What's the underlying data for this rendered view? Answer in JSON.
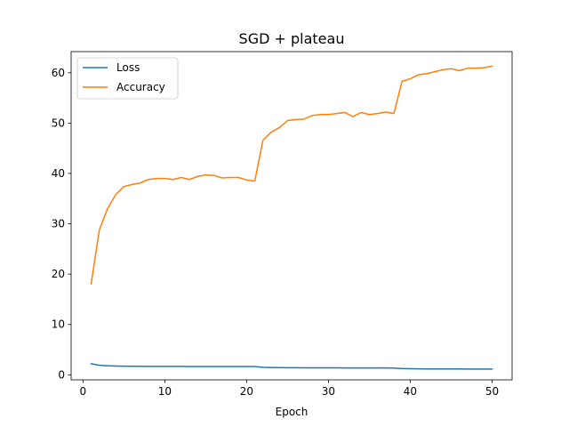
{
  "chart_data": {
    "type": "line",
    "title": "SGD + plateau",
    "xlabel": "Epoch",
    "ylabel": "",
    "xlim": [
      -1.45,
      52.45
    ],
    "ylim": [
      -1.0,
      64.2
    ],
    "xticks": [
      0,
      10,
      20,
      30,
      40,
      50
    ],
    "yticks": [
      0,
      10,
      20,
      30,
      40,
      50,
      60
    ],
    "grid": false,
    "legend_position": "top-left",
    "x": [
      1,
      2,
      3,
      4,
      5,
      6,
      7,
      8,
      9,
      10,
      11,
      12,
      13,
      14,
      15,
      16,
      17,
      18,
      19,
      20,
      21,
      22,
      23,
      24,
      25,
      26,
      27,
      28,
      29,
      30,
      31,
      32,
      33,
      34,
      35,
      36,
      37,
      38,
      39,
      40,
      41,
      42,
      43,
      44,
      45,
      46,
      47,
      48,
      49,
      50
    ],
    "series": [
      {
        "name": "Loss",
        "color": "#1f77b4",
        "values": [
          2.2,
          1.9,
          1.8,
          1.75,
          1.72,
          1.7,
          1.69,
          1.68,
          1.68,
          1.67,
          1.67,
          1.67,
          1.66,
          1.66,
          1.66,
          1.65,
          1.65,
          1.65,
          1.65,
          1.65,
          1.64,
          1.5,
          1.45,
          1.42,
          1.41,
          1.4,
          1.39,
          1.39,
          1.38,
          1.38,
          1.38,
          1.37,
          1.37,
          1.37,
          1.36,
          1.36,
          1.36,
          1.35,
          1.25,
          1.2,
          1.18,
          1.17,
          1.17,
          1.16,
          1.16,
          1.16,
          1.15,
          1.15,
          1.15,
          1.15
        ]
      },
      {
        "name": "Accuracy",
        "color": "#ff7f0e",
        "values": [
          18.1,
          28.8,
          33.0,
          35.8,
          37.4,
          37.8,
          38.1,
          38.8,
          39.0,
          39.0,
          38.8,
          39.2,
          38.8,
          39.4,
          39.7,
          39.6,
          39.1,
          39.2,
          39.2,
          38.7,
          38.5,
          46.6,
          48.2,
          49.1,
          50.5,
          50.7,
          50.8,
          51.5,
          51.7,
          51.7,
          51.9,
          52.1,
          51.3,
          52.1,
          51.7,
          51.9,
          52.2,
          51.9,
          58.3,
          58.8,
          59.6,
          59.8,
          60.2,
          60.6,
          60.8,
          60.4,
          60.9,
          60.9,
          61.0,
          61.3
        ]
      }
    ]
  }
}
